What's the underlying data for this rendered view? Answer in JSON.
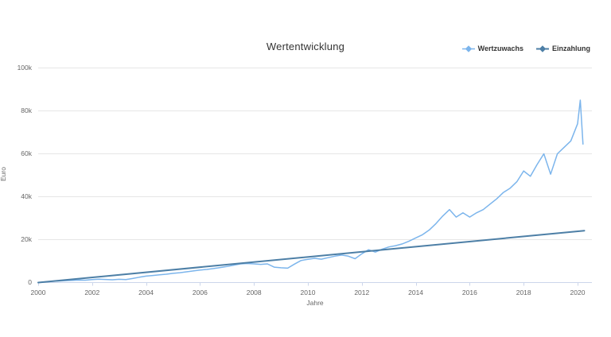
{
  "page": {
    "background": "#ffffff"
  },
  "chart_data": {
    "type": "line",
    "title": "Wertentwicklung",
    "xlabel": "Jahre",
    "ylabel": "Euro",
    "xlim": [
      2000,
      2020.5
    ],
    "ylim": [
      0,
      100000
    ],
    "grid": "horizontal",
    "legend_position": "top-right",
    "x_ticks": [
      2000,
      2002,
      2004,
      2006,
      2008,
      2010,
      2012,
      2014,
      2016,
      2018,
      2020
    ],
    "y_ticks": [
      {
        "value": 0,
        "label": "0"
      },
      {
        "value": 20000,
        "label": "20k"
      },
      {
        "value": 40000,
        "label": "40k"
      },
      {
        "value": 60000,
        "label": "60k"
      },
      {
        "value": 80000,
        "label": "80k"
      },
      {
        "value": 100000,
        "label": "100k"
      }
    ],
    "series": [
      {
        "name": "Wertzuwachs",
        "color": "#7cb5ec",
        "marker": "diamond",
        "line_width": 1.5,
        "points": [
          [
            2000.0,
            0
          ],
          [
            2000.25,
            300
          ],
          [
            2000.5,
            550
          ],
          [
            2000.75,
            700
          ],
          [
            2001.0,
            900
          ],
          [
            2001.25,
            1050
          ],
          [
            2001.5,
            1150
          ],
          [
            2001.75,
            1100
          ],
          [
            2002.0,
            1400
          ],
          [
            2002.25,
            1600
          ],
          [
            2002.5,
            1450
          ],
          [
            2002.75,
            1300
          ],
          [
            2003.0,
            1500
          ],
          [
            2003.25,
            1400
          ],
          [
            2003.5,
            1900
          ],
          [
            2003.75,
            2500
          ],
          [
            2004.0,
            3000
          ],
          [
            2004.25,
            3300
          ],
          [
            2004.5,
            3600
          ],
          [
            2004.75,
            3900
          ],
          [
            2005.0,
            4300
          ],
          [
            2005.25,
            4600
          ],
          [
            2005.5,
            5000
          ],
          [
            2005.75,
            5400
          ],
          [
            2006.0,
            5800
          ],
          [
            2006.25,
            6100
          ],
          [
            2006.5,
            6500
          ],
          [
            2006.75,
            7000
          ],
          [
            2007.0,
            7500
          ],
          [
            2007.25,
            8100
          ],
          [
            2007.5,
            8700
          ],
          [
            2007.75,
            8900
          ],
          [
            2008.0,
            8700
          ],
          [
            2008.25,
            8500
          ],
          [
            2008.5,
            8700
          ],
          [
            2008.75,
            7200
          ],
          [
            2009.0,
            6900
          ],
          [
            2009.25,
            6700
          ],
          [
            2009.5,
            8600
          ],
          [
            2009.75,
            10300
          ],
          [
            2010.0,
            10800
          ],
          [
            2010.25,
            11300
          ],
          [
            2010.5,
            10900
          ],
          [
            2010.75,
            11600
          ],
          [
            2011.0,
            12300
          ],
          [
            2011.25,
            12800
          ],
          [
            2011.5,
            12300
          ],
          [
            2011.75,
            11100
          ],
          [
            2012.0,
            13400
          ],
          [
            2012.25,
            15300
          ],
          [
            2012.5,
            14200
          ],
          [
            2012.75,
            15500
          ],
          [
            2013.0,
            16600
          ],
          [
            2013.25,
            17200
          ],
          [
            2013.5,
            18000
          ],
          [
            2013.75,
            19300
          ],
          [
            2014.0,
            20800
          ],
          [
            2014.25,
            22300
          ],
          [
            2014.5,
            24500
          ],
          [
            2014.75,
            27500
          ],
          [
            2015.0,
            31000
          ],
          [
            2015.25,
            34000
          ],
          [
            2015.5,
            30500
          ],
          [
            2015.75,
            32500
          ],
          [
            2016.0,
            30500
          ],
          [
            2016.25,
            32500
          ],
          [
            2016.5,
            34000
          ],
          [
            2016.75,
            36500
          ],
          [
            2017.0,
            39000
          ],
          [
            2017.25,
            42000
          ],
          [
            2017.5,
            44000
          ],
          [
            2017.75,
            47000
          ],
          [
            2018.0,
            52000
          ],
          [
            2018.25,
            49500
          ],
          [
            2018.5,
            55000
          ],
          [
            2018.75,
            60000
          ],
          [
            2019.0,
            50500
          ],
          [
            2019.25,
            60000
          ],
          [
            2019.5,
            63000
          ],
          [
            2019.75,
            66000
          ],
          [
            2020.0,
            74000
          ],
          [
            2020.1,
            85000
          ],
          [
            2020.2,
            64500
          ]
        ]
      },
      {
        "name": "Einzahlung",
        "color": "#4d7fa6",
        "marker": "diamond",
        "line_width": 2,
        "points": [
          [
            2000.0,
            0
          ],
          [
            2020.25,
            24200
          ]
        ]
      }
    ]
  },
  "colors": {
    "grid_line": "#e6e6e6",
    "axis_line": "#ccd6eb",
    "tick_text": "#666666",
    "title_text": "#333333"
  }
}
